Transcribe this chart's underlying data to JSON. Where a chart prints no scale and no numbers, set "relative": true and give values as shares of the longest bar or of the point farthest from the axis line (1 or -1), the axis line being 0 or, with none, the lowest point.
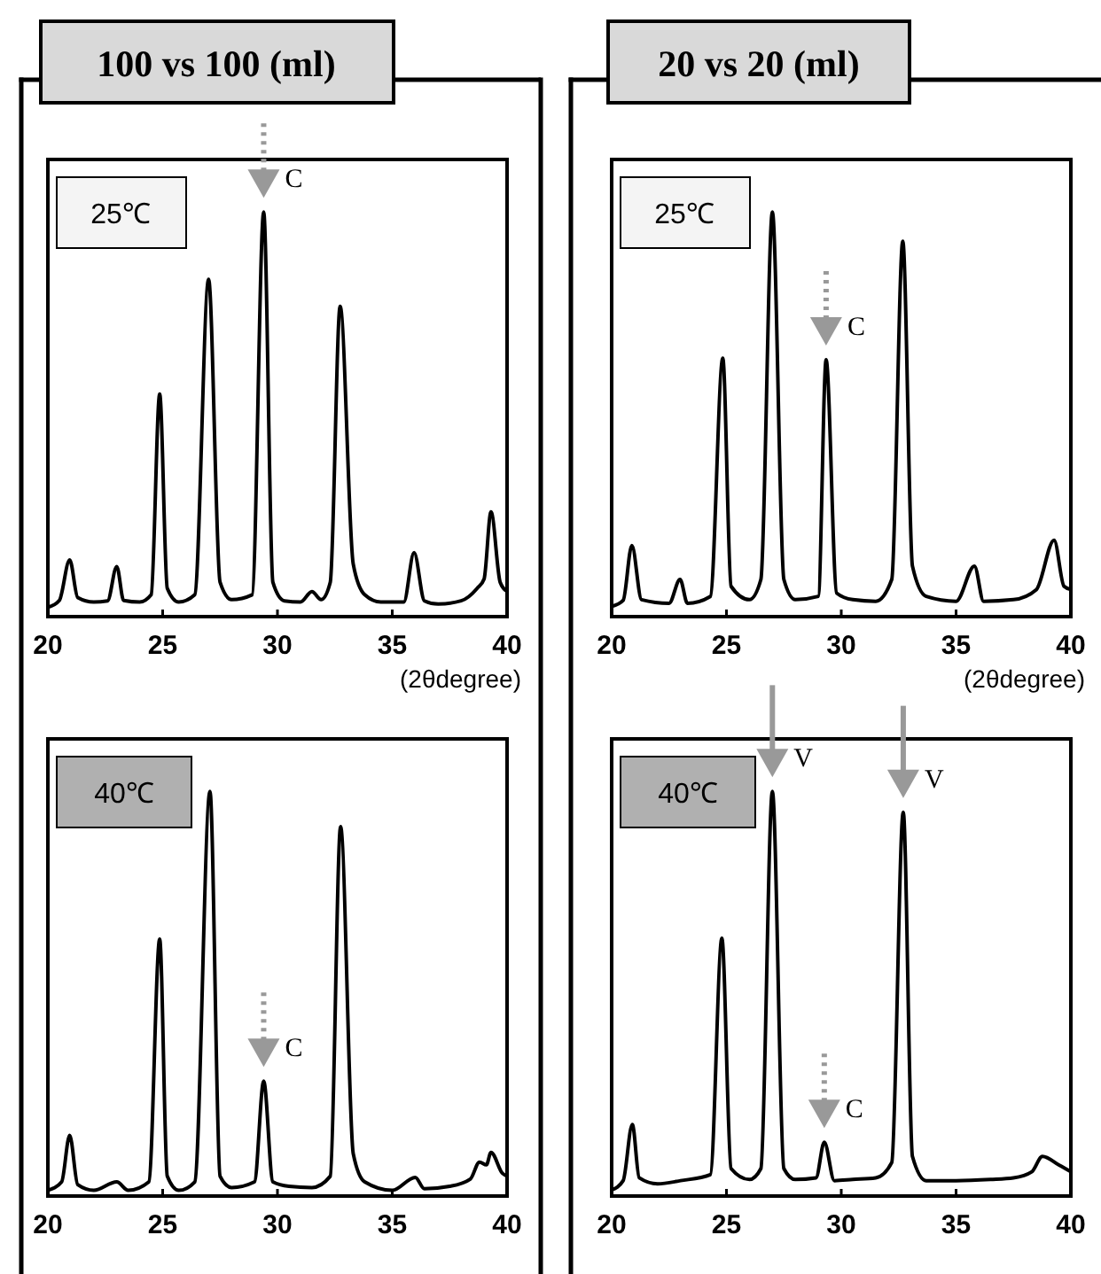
{
  "chart_data": [
    {
      "type": "line",
      "title": "100 vs 100 (ml)",
      "xlabel": "(2θdegree)",
      "relative": true,
      "xlim": [
        20,
        40
      ],
      "xticks": [
        20,
        25,
        30,
        35,
        40
      ],
      "line_style": "solid",
      "marker": "none",
      "grid": false,
      "series": [
        {
          "color": "#000000",
          "x": [
            20,
            20.5,
            20.95,
            21.3,
            22,
            22.6,
            23.0,
            23.3,
            24,
            24.5,
            24.87,
            25.2,
            25.7,
            26.4,
            27.0,
            27.5,
            28,
            28.9,
            29.4,
            29.8,
            30.3,
            31,
            31.5,
            31.9,
            32.3,
            32.73,
            33.3,
            33.8,
            34.5,
            35.5,
            35.95,
            36.4,
            37,
            38,
            38.7,
            39,
            39.3,
            39.7,
            40
          ],
          "values": [
            0.023,
            0.04,
            0.14,
            0.047,
            0.036,
            0.039,
            0.124,
            0.04,
            0.036,
            0.054,
            0.55,
            0.07,
            0.036,
            0.054,
            0.834,
            0.085,
            0.042,
            0.054,
            1.0,
            0.085,
            0.039,
            0.036,
            0.062,
            0.042,
            0.085,
            0.767,
            0.13,
            0.054,
            0.036,
            0.036,
            0.158,
            0.039,
            0.031,
            0.039,
            0.07,
            0.093,
            0.259,
            0.085,
            0.062
          ]
        }
      ],
      "annotations": [
        "25℃",
        {
          "text": "C",
          "x": 29.4,
          "y": 1.0
        }
      ]
    },
    {
      "type": "line",
      "title": "20 vs 20 (ml)",
      "xlabel": "(2θdegree)",
      "relative": true,
      "xlim": [
        20,
        40
      ],
      "xticks": [
        20,
        25,
        30,
        35,
        40
      ],
      "line_style": "solid",
      "marker": "none",
      "grid": false,
      "series": [
        {
          "color": "#000000",
          "x": [
            20,
            20.5,
            20.88,
            21.3,
            22.5,
            22.98,
            23.3,
            24.3,
            24.84,
            25.2,
            26,
            26.5,
            27.0,
            27.5,
            28,
            29,
            29.34,
            29.8,
            30.5,
            31.5,
            32.2,
            32.68,
            33.1,
            33.7,
            35,
            35.8,
            36.2,
            37.5,
            38.5,
            39.27,
            39.7,
            40
          ],
          "values": [
            0.025,
            0.04,
            0.176,
            0.042,
            0.033,
            0.092,
            0.033,
            0.05,
            0.639,
            0.075,
            0.042,
            0.092,
            1.0,
            0.092,
            0.042,
            0.05,
            0.635,
            0.058,
            0.042,
            0.038,
            0.092,
            0.928,
            0.125,
            0.05,
            0.038,
            0.125,
            0.038,
            0.042,
            0.067,
            0.189,
            0.075,
            0.067
          ]
        }
      ],
      "annotations": [
        "25℃",
        {
          "text": "C",
          "x": 29.34,
          "y": 0.635
        }
      ]
    },
    {
      "type": "line",
      "relative": true,
      "xlim": [
        20,
        40
      ],
      "xticks": [
        20,
        25,
        30,
        35,
        40
      ],
      "line_style": "solid",
      "marker": "none",
      "grid": false,
      "series": [
        {
          "color": "#000000",
          "x": [
            20,
            20.6,
            20.95,
            21.3,
            22,
            23,
            23.5,
            24.4,
            24.87,
            25.2,
            25.7,
            26.4,
            27.06,
            27.5,
            28,
            29,
            29.4,
            29.8,
            30.5,
            31.5,
            32.3,
            32.75,
            33.3,
            33.8,
            35,
            36.0,
            36.4,
            37.5,
            38.4,
            38.8,
            39.1,
            39.3,
            39.8,
            40
          ],
          "values": [
            0.014,
            0.035,
            0.15,
            0.028,
            0.014,
            0.035,
            0.014,
            0.035,
            0.635,
            0.049,
            0.014,
            0.035,
            1.0,
            0.049,
            0.021,
            0.035,
            0.284,
            0.035,
            0.024,
            0.021,
            0.049,
            0.913,
            0.105,
            0.035,
            0.014,
            0.046,
            0.018,
            0.024,
            0.042,
            0.084,
            0.077,
            0.108,
            0.056,
            0.049
          ]
        }
      ],
      "annotations": [
        "40℃",
        {
          "text": "C",
          "x": 29.4,
          "y": 0.284
        }
      ]
    },
    {
      "type": "line",
      "relative": true,
      "xlim": [
        20,
        40
      ],
      "xticks": [
        20,
        25,
        30,
        35,
        40
      ],
      "line_style": "solid",
      "marker": "none",
      "grid": false,
      "series": [
        {
          "color": "#000000",
          "x": [
            20,
            20.5,
            20.9,
            21.2,
            22,
            23,
            24.3,
            24.8,
            25.2,
            26,
            26.5,
            27.0,
            27.5,
            28,
            28.9,
            29.26,
            29.7,
            30.5,
            31.5,
            32.2,
            32.7,
            33.1,
            33.7,
            35,
            36.5,
            37.5,
            38.3,
            38.76,
            39.5,
            40
          ],
          "values": [
            0.015,
            0.038,
            0.177,
            0.045,
            0.03,
            0.038,
            0.053,
            0.637,
            0.068,
            0.041,
            0.068,
            1.0,
            0.068,
            0.041,
            0.045,
            0.133,
            0.038,
            0.041,
            0.045,
            0.083,
            0.949,
            0.098,
            0.038,
            0.038,
            0.041,
            0.045,
            0.06,
            0.098,
            0.076,
            0.06
          ]
        }
      ],
      "annotations": [
        "40℃",
        {
          "text": "V",
          "x": 27.0,
          "y": 1.0
        },
        {
          "text": "V",
          "x": 32.7,
          "y": 0.949
        },
        {
          "text": "C",
          "x": 29.26,
          "y": 0.133
        }
      ]
    }
  ]
}
